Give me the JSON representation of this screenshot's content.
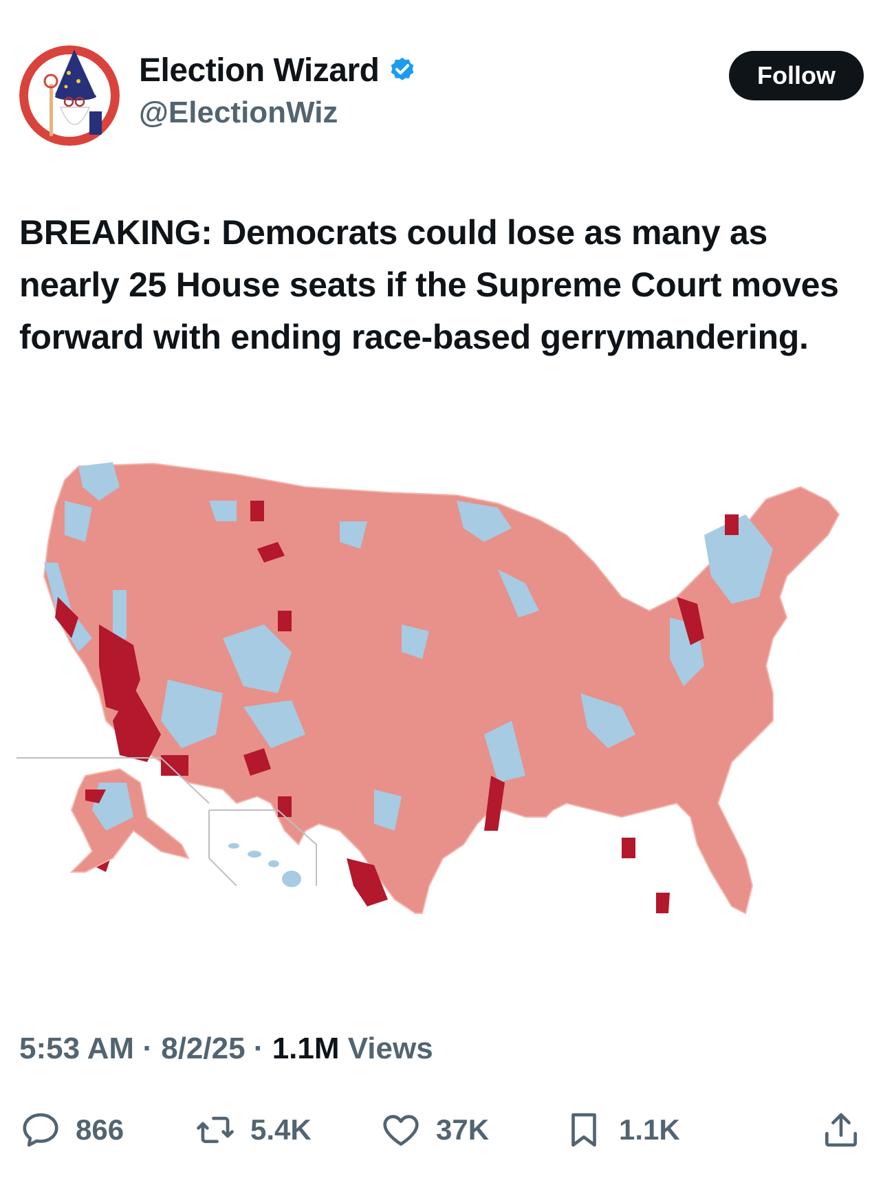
{
  "author": {
    "display_name": "Election Wizard",
    "handle": "@ElectionWiz",
    "verified": true
  },
  "follow_label": "Follow",
  "tweet": {
    "text": "BREAKING: Democrats could lose as many as nearly 25 House seats if the Supreme Court moves forward with ending race-based gerrymandering."
  },
  "meta": {
    "time": "5:53 AM",
    "date": "8/2/25",
    "views_count": "1.1M",
    "views_label": "Views"
  },
  "actions": {
    "replies": "866",
    "reposts": "5.4K",
    "likes": "37K",
    "bookmarks": "1.1K"
  },
  "colors": {
    "map_light_red": "#e8908a",
    "map_dark_red": "#b3182c",
    "map_light_blue": "#a6cbe2",
    "follow_bg": "#0f1419",
    "verified_blue": "#1d9bf0",
    "muted_text": "#536471"
  }
}
